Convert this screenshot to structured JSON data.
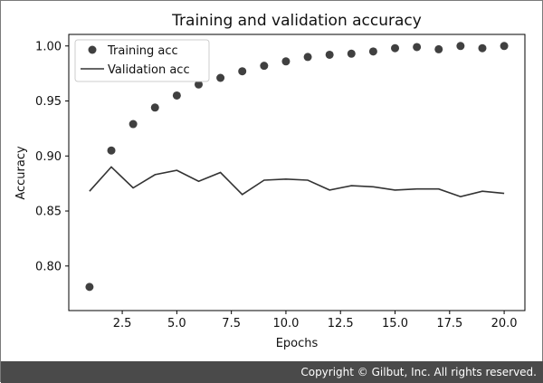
{
  "chart_data": {
    "type": "scatter",
    "title": "Training and validation accuracy",
    "xlabel": "Epochs",
    "ylabel": "Accuracy",
    "xlim": [
      0.05,
      20.95
    ],
    "ylim": [
      0.7595,
      1.0105
    ],
    "xticks": [
      2.5,
      5.0,
      7.5,
      10.0,
      12.5,
      15.0,
      17.5,
      20.0
    ],
    "xtick_labels": [
      "2.5",
      "5.0",
      "7.5",
      "10.0",
      "12.5",
      "15.0",
      "17.5",
      "20.0"
    ],
    "yticks": [
      0.8,
      0.85,
      0.9,
      0.95,
      1.0
    ],
    "ytick_labels": [
      "0.80",
      "0.85",
      "0.90",
      "0.95",
      "1.00"
    ],
    "grid": false,
    "legend_position": "top-left",
    "series": [
      {
        "name": "Training acc",
        "style": "dots",
        "color": "#404040",
        "x": [
          1,
          2,
          3,
          4,
          5,
          6,
          7,
          8,
          9,
          10,
          11,
          12,
          13,
          14,
          15,
          16,
          17,
          18,
          19,
          20
        ],
        "y": [
          0.781,
          0.905,
          0.929,
          0.944,
          0.955,
          0.965,
          0.971,
          0.977,
          0.982,
          0.986,
          0.99,
          0.992,
          0.993,
          0.995,
          0.998,
          0.999,
          0.997,
          1.0,
          0.998,
          1.0
        ]
      },
      {
        "name": "Validation acc",
        "style": "line",
        "color": "#333333",
        "x": [
          1,
          2,
          3,
          4,
          5,
          6,
          7,
          8,
          9,
          10,
          11,
          12,
          13,
          14,
          15,
          16,
          17,
          18,
          19,
          20
        ],
        "y": [
          0.868,
          0.89,
          0.871,
          0.883,
          0.887,
          0.877,
          0.885,
          0.865,
          0.878,
          0.879,
          0.878,
          0.869,
          0.873,
          0.872,
          0.869,
          0.87,
          0.87,
          0.863,
          0.868,
          0.866
        ]
      }
    ]
  },
  "footer": {
    "copyright": "Copyright © Gilbut, Inc. All rights reserved."
  }
}
